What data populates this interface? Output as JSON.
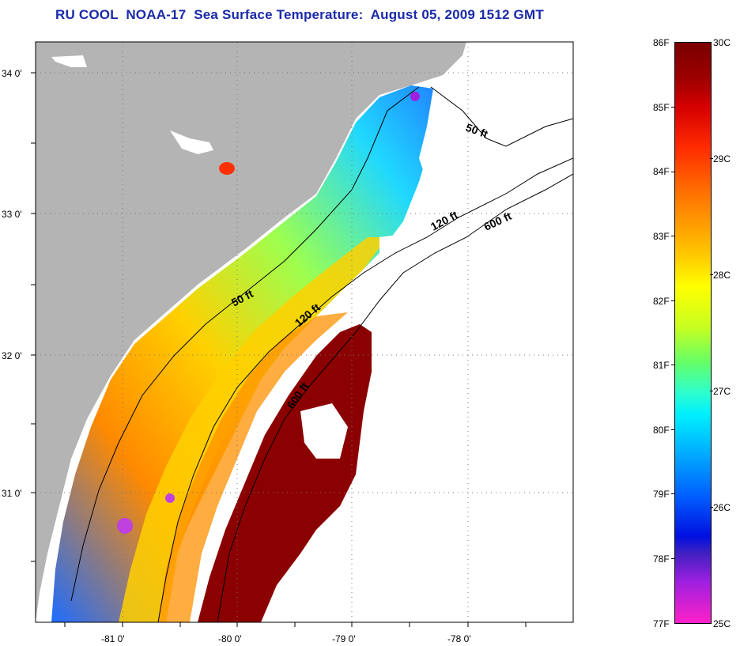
{
  "title": "RU COOL  NOAA-17  Sea Surface Temperature:  August 05, 2009 1512 GMT",
  "axes": {
    "lon_labels": [
      "-81 0'",
      "-80 0'",
      "-79 0'",
      "-78 0'"
    ],
    "lat_labels": [
      "34 0'",
      "33 0'",
      "32 0'",
      "31 0'"
    ]
  },
  "contours": {
    "labels": [
      "50 ft",
      "120 ft",
      "600 ft",
      "50 ft",
      "120 ft",
      "600 ft"
    ]
  },
  "colorbar": {
    "fahrenheit": [
      "86F",
      "85F",
      "84F",
      "83F",
      "82F",
      "81F",
      "80F",
      "79F",
      "78F",
      "77F"
    ],
    "celsius": [
      "30C",
      "29C",
      "28C",
      "27C",
      "26C",
      "25C"
    ]
  },
  "colors": {
    "land": "#b4b4b4",
    "title": "#1a2aa8",
    "warm": "#8b0000",
    "cool": "#0040ff"
  }
}
